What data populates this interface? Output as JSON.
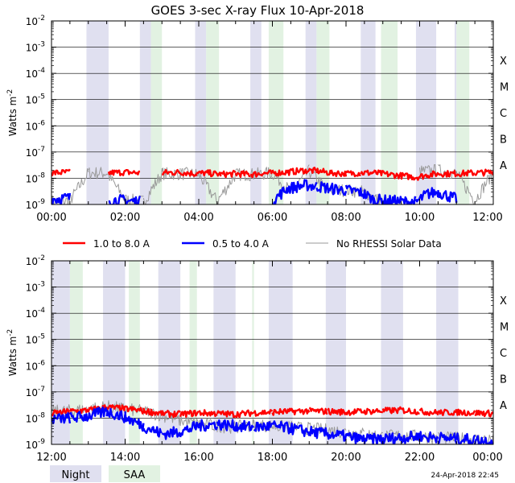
{
  "title": "GOES 3-sec X-ray Flux   10-Apr-2018",
  "footer_timestamp": "24-Apr-2018 22:45",
  "colors": {
    "long_channel": "#ff0000",
    "short_channel": "#0000ff",
    "rhessi": "#999999",
    "night": "#e0e0f0",
    "saa": "#e2f2e2",
    "grid": "#000000"
  },
  "legend": {
    "items": [
      {
        "label": "1.0 to 8.0 A",
        "color": "#ff0000"
      },
      {
        "label": "0.5 to 4.0 A",
        "color": "#0000ff"
      },
      {
        "label": "No RHESSI Solar Data",
        "color": "#999999"
      }
    ],
    "bottom_items": [
      {
        "label": "Night",
        "color": "#e0e0f0"
      },
      {
        "label": "SAA",
        "color": "#e2f2e2"
      }
    ]
  },
  "chart_data": [
    {
      "type": "line",
      "panel": "top",
      "ylabel": "Watts m",
      "ylabel_sup": "-2",
      "yscale": "log",
      "ylim": [
        1e-09,
        0.01
      ],
      "y_ticks": [
        {
          "exp": "-9"
        },
        {
          "exp": "-8"
        },
        {
          "exp": "-7"
        },
        {
          "exp": "-6"
        },
        {
          "exp": "-5"
        },
        {
          "exp": "-4"
        },
        {
          "exp": "-3"
        },
        {
          "exp": "-2"
        }
      ],
      "class_labels": [
        "A",
        "B",
        "C",
        "M",
        "X"
      ],
      "xlim": [
        0,
        12
      ],
      "x_ticks": [
        "00:00",
        "02:00",
        "04:00",
        "06:00",
        "08:00",
        "10:00",
        "12:00"
      ],
      "night_intervals": [
        [
          0.95,
          1.55
        ],
        [
          2.4,
          2.7
        ],
        [
          3.9,
          4.2
        ],
        [
          5.4,
          5.7
        ],
        [
          6.9,
          7.2
        ],
        [
          8.4,
          8.8
        ],
        [
          9.9,
          10.45
        ],
        [
          10.95,
          11.0
        ]
      ],
      "saa_intervals": [
        [
          2.7,
          3.0
        ],
        [
          4.2,
          4.55
        ],
        [
          5.9,
          6.3
        ],
        [
          7.2,
          7.55
        ],
        [
          8.95,
          9.4
        ],
        [
          11.0,
          11.35
        ]
      ],
      "series": [
        {
          "name": "1.0 to 8.0 A",
          "channel": "long",
          "x": [
            0,
            0.5,
            0.95,
            1.55,
            2.0,
            2.4,
            2.7,
            3.0,
            3.5,
            3.9,
            4.2,
            4.6,
            5.0,
            5.4,
            5.7,
            6.0,
            6.4,
            6.9,
            7.2,
            7.6,
            8.0,
            8.4,
            8.75,
            9.9,
            10.2,
            10.5,
            11.0,
            11.5,
            12.0
          ],
          "y": [
            1.6e-08,
            1.7e-08,
            null,
            1.6e-08,
            1.7e-08,
            1.6e-08,
            null,
            1.6e-08,
            1.7e-08,
            1.5e-08,
            1.6e-08,
            1.4e-08,
            1.5e-08,
            1.4e-08,
            1.5e-08,
            1.6e-08,
            1.7e-08,
            2e-08,
            1.9e-08,
            1.6e-08,
            1.5e-08,
            1.6e-08,
            1.6e-08,
            1.1e-08,
            1.3e-08,
            1.5e-08,
            1.5e-08,
            1.6e-08,
            1.7e-08
          ]
        },
        {
          "name": "0.5 to 4.0 A",
          "channel": "short",
          "x": [
            0,
            0.5,
            0.95,
            1.55,
            2.0,
            2.4,
            2.7,
            3.0,
            3.5,
            3.9,
            4.2,
            4.6,
            5.0,
            5.4,
            5.7,
            6.0,
            6.4,
            6.9,
            7.2,
            7.6,
            8.0,
            8.4,
            8.75,
            9.9,
            10.2,
            10.5,
            11.0,
            11.5,
            12.0
          ],
          "y": [
            1.6e-09,
            1.8e-09,
            null,
            1.5e-09,
            1.4e-09,
            1.3e-09,
            null,
            null,
            null,
            null,
            null,
            null,
            null,
            null,
            null,
            1.4e-09,
            4e-09,
            5.5e-09,
            5e-09,
            4e-09,
            3.5e-09,
            3e-09,
            1.5e-09,
            1.2e-09,
            2.5e-09,
            3e-09,
            1.6e-09,
            null,
            1.6e-09
          ]
        },
        {
          "name": "No RHESSI Solar Data",
          "channel": "rhessi",
          "x": [
            0,
            0.5,
            1.0,
            1.5,
            2.0,
            2.5,
            3.0,
            3.5,
            4.0,
            4.5,
            5.0,
            5.5,
            6.0,
            6.5,
            7.0,
            7.5,
            8.0,
            8.5,
            9.0,
            9.5,
            10.0,
            10.5,
            11.0,
            11.5,
            12.0
          ],
          "y": [
            1.3e-09,
            1.4e-09,
            1.6e-08,
            1.6e-08,
            1.5e-09,
            1.3e-09,
            1.5e-08,
            1.5e-08,
            1.4e-08,
            1.3e-09,
            1.4e-08,
            1.4e-08,
            1.6e-08,
            3e-09,
            1.9e-08,
            3.5e-09,
            3.5e-09,
            3e-09,
            1.2e-09,
            null,
            1.8e-08,
            2e-08,
            1.5e-08,
            1.4e-09,
            1.8e-08
          ]
        }
      ]
    },
    {
      "type": "line",
      "panel": "bottom",
      "ylabel": "Watts m",
      "ylabel_sup": "-2",
      "yscale": "log",
      "ylim": [
        1e-09,
        0.01
      ],
      "y_ticks": [
        {
          "exp": "-9"
        },
        {
          "exp": "-8"
        },
        {
          "exp": "-7"
        },
        {
          "exp": "-6"
        },
        {
          "exp": "-5"
        },
        {
          "exp": "-4"
        },
        {
          "exp": "-3"
        },
        {
          "exp": "-2"
        }
      ],
      "class_labels": [
        "A",
        "B",
        "C",
        "M",
        "X"
      ],
      "xlim": [
        12,
        24
      ],
      "x_ticks": [
        "12:00",
        "14:00",
        "16:00",
        "18:00",
        "20:00",
        "22:00",
        "00:00"
      ],
      "night_intervals": [
        [
          12.0,
          12.5
        ],
        [
          13.4,
          14.0
        ],
        [
          14.9,
          15.5
        ],
        [
          16.4,
          17.0
        ],
        [
          17.9,
          18.55
        ],
        [
          19.45,
          20.0
        ],
        [
          20.95,
          21.55
        ],
        [
          22.45,
          23.05
        ]
      ],
      "saa_intervals": [
        [
          12.5,
          12.85
        ],
        [
          14.1,
          14.4
        ],
        [
          15.75,
          15.95
        ],
        [
          17.45,
          17.5
        ]
      ],
      "series": [
        {
          "name": "1.0 to 8.0 A",
          "channel": "long",
          "x": [
            12.0,
            12.5,
            13.0,
            13.5,
            14.0,
            14.5,
            15.0,
            15.5,
            16.0,
            16.5,
            17.0,
            17.5,
            18.0,
            18.5,
            19.0,
            19.5,
            20.0,
            20.5,
            21.0,
            21.5,
            22.0,
            22.5,
            23.0,
            23.5,
            24.0
          ],
          "y": [
            1.5e-08,
            1.8e-08,
            2e-08,
            2.6e-08,
            2.3e-08,
            1.9e-08,
            1.5e-08,
            1.4e-08,
            1.6e-08,
            1.5e-08,
            1.4e-08,
            1.6e-08,
            1.7e-08,
            1.8e-08,
            1.9e-08,
            1.8e-08,
            1.7e-08,
            1.8e-08,
            1.9e-08,
            2e-08,
            1.8e-08,
            1.6e-08,
            1.7e-08,
            1.6e-08,
            1.5e-08
          ]
        },
        {
          "name": "0.5 to 4.0 A",
          "channel": "short",
          "x": [
            12.0,
            12.5,
            13.0,
            13.5,
            14.0,
            14.5,
            15.0,
            15.5,
            16.0,
            16.5,
            17.0,
            17.5,
            18.0,
            18.5,
            19.0,
            19.5,
            20.0,
            20.5,
            21.0,
            21.5,
            22.0,
            22.5,
            23.0,
            23.5,
            24.0
          ],
          "y": [
            9e-09,
            1e-08,
            1.2e-08,
            1.8e-08,
            1.1e-08,
            5e-09,
            2.5e-09,
            3e-09,
            5e-09,
            6e-09,
            5e-09,
            4.5e-09,
            5e-09,
            4e-09,
            3e-09,
            2.5e-09,
            2e-09,
            1.5e-09,
            1.6e-09,
            1.8e-09,
            2e-09,
            1.8e-09,
            1.6e-09,
            1.5e-09,
            1.3e-09
          ]
        },
        {
          "name": "No RHESSI Solar Data",
          "channel": "rhessi",
          "x": [
            12.0,
            12.5,
            13.0,
            13.5,
            14.0,
            14.5,
            15.0,
            15.5,
            16.0,
            16.5,
            17.0,
            17.5,
            18.0,
            18.5,
            19.0,
            19.5,
            20.0,
            20.5,
            21.0,
            21.5,
            22.0,
            22.5,
            23.0,
            23.5,
            24.0
          ],
          "y": [
            1.8e-08,
            1.9e-08,
            2.2e-08,
            2.8e-08,
            2.2e-08,
            1.8e-08,
            1.3e-08,
            8e-09,
            6e-09,
            5e-09,
            4.5e-09,
            5.5e-09,
            5e-09,
            4.5e-09,
            4e-09,
            3.5e-09,
            3e-09,
            2.5e-09,
            2e-09,
            2.2e-09,
            2e-09,
            1.8e-09,
            1.7e-09,
            1.6e-09,
            1.5e-09
          ]
        }
      ]
    }
  ]
}
